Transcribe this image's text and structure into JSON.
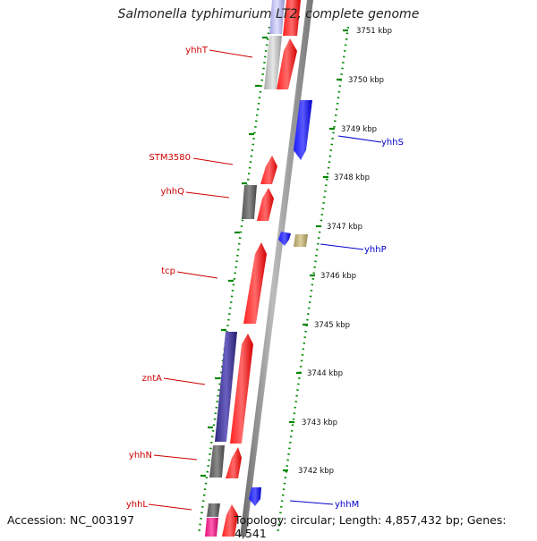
{
  "title": "Salmonella typhimurium LT2, complete genome",
  "footer": {
    "accession": "Accession: NC_003197",
    "topology": "Topology: circular; Length: 4,857,432 bp; Genes: 4,541"
  },
  "colors": {
    "forward_gene": "#ff0000",
    "reverse_gene": "#0000ff",
    "backbone": "#888888",
    "tick_ring": "#008800",
    "left_label": "#cc0000",
    "right_label": "#0000cc"
  },
  "scale_labels": [
    "3751 kbp",
    "3750 kbp",
    "3749 kbp",
    "3748 kbp",
    "3747 kbp",
    "3746 kbp",
    "3745 kbp",
    "3744 kbp",
    "3743 kbp",
    "3742 kbp"
  ],
  "gene_labels_left": [
    "yhhT",
    "STM3580",
    "yhhQ",
    "tcp",
    "zntA",
    "yhhN",
    "yhhL"
  ],
  "gene_labels_right": [
    "yhhS",
    "yhhP",
    "yhhM"
  ]
}
